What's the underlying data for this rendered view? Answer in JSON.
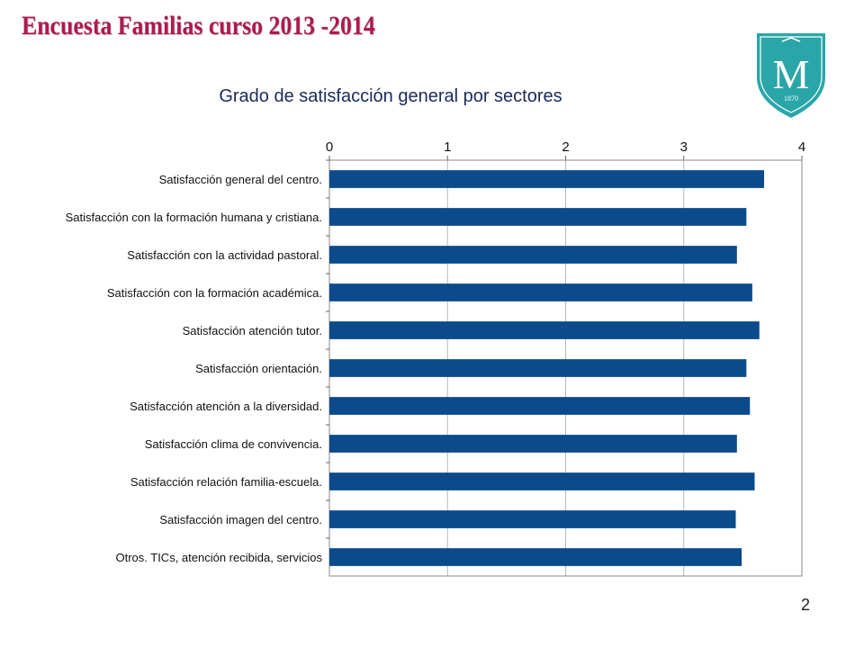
{
  "slide": {
    "title": "Encuesta Familias curso 2013 -2014",
    "page_number": "2"
  },
  "logo": {
    "letter": "M",
    "year": "1870",
    "color": "#2aa6a8"
  },
  "colors": {
    "bar": "#0b4a8b",
    "grid": "#b8b8b8",
    "title": "#b0184f"
  },
  "chart_data": {
    "type": "bar",
    "orientation": "horizontal",
    "title": "Grado de satisfacción general por sectores",
    "xaxis_position": "top",
    "xlim": [
      0,
      4
    ],
    "xticks": [
      "0",
      "1",
      "2",
      "3",
      "4"
    ],
    "grid": true,
    "categories": [
      "Satisfacción general del centro.",
      "Satisfacción con la formación humana y cristiana.",
      "Satisfacción con la actividad pastoral.",
      "Satisfacción con la formación académica.",
      "Satisfacción atención tutor.",
      "Satisfacción orientación.",
      "Satisfacción  atención a la diversidad.",
      "Satisfacción clima de convivencia.",
      "Satisfacción relación familia-escuela.",
      "Satisfacción  imagen del centro.",
      "Otros. TICs, atención recibida, servicios"
    ],
    "values": [
      3.68,
      3.53,
      3.45,
      3.58,
      3.64,
      3.53,
      3.56,
      3.45,
      3.6,
      3.44,
      3.49
    ]
  }
}
